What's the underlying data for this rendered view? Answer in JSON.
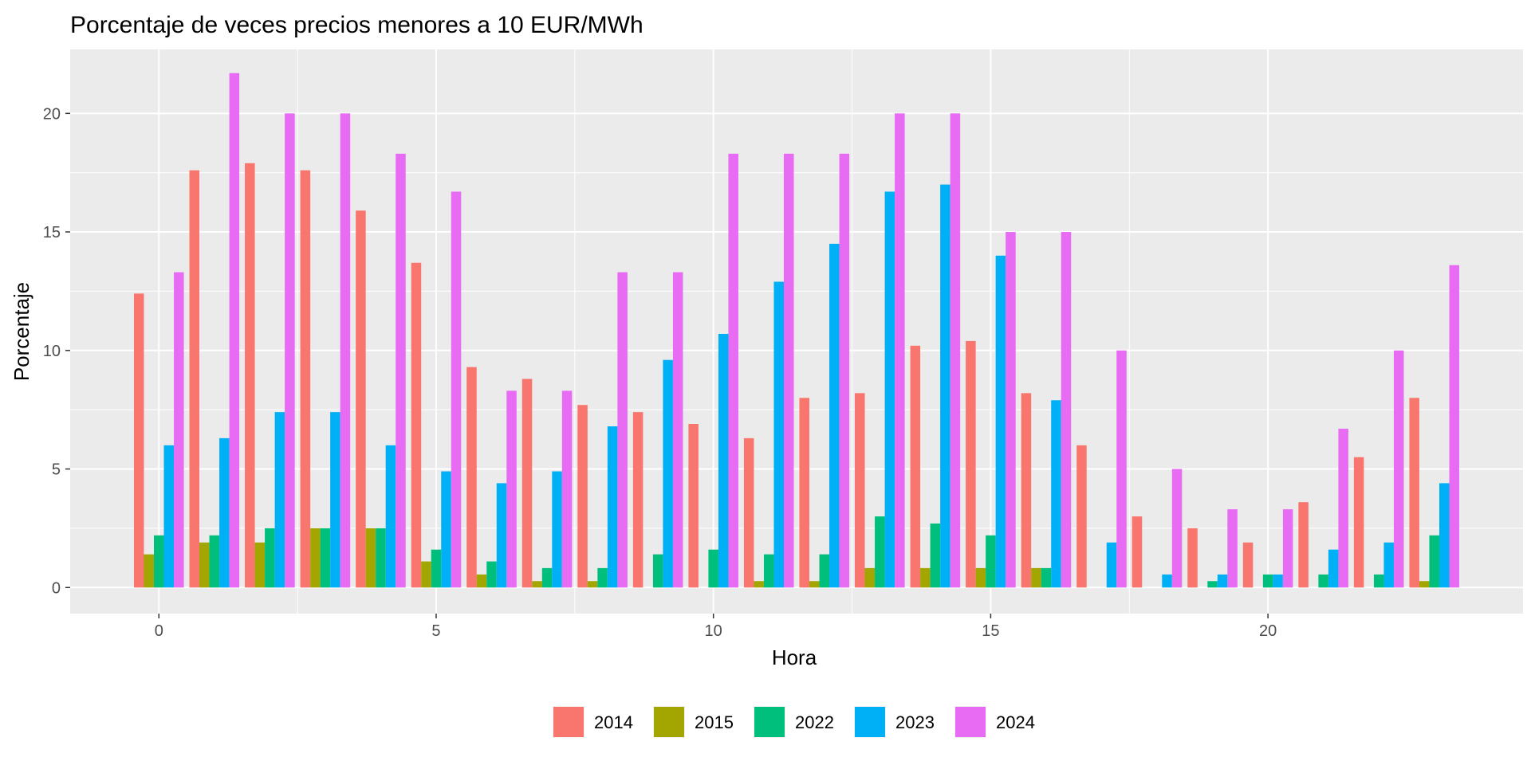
{
  "chart_data": {
    "type": "bar",
    "title": "Porcentaje de veces precios menores a 10 EUR/MWh",
    "xlabel": "Hora",
    "ylabel": "Porcentaje",
    "xlim": [
      -1.6,
      24.6
    ],
    "ylim": [
      -1.1,
      22.7
    ],
    "x_ticks": [
      0,
      5,
      10,
      15,
      20
    ],
    "y_ticks": [
      0,
      5,
      10,
      15,
      20
    ],
    "grid": true,
    "legend_position": "bottom",
    "x": [
      0,
      1,
      2,
      3,
      4,
      5,
      6,
      7,
      8,
      9,
      10,
      11,
      12,
      13,
      14,
      15,
      16,
      17,
      18,
      19,
      20,
      21,
      22,
      23
    ],
    "series": [
      {
        "name": "2014",
        "color": "#F8766D",
        "values": [
          12.4,
          17.6,
          17.9,
          17.6,
          15.9,
          13.7,
          9.3,
          8.8,
          7.7,
          7.4,
          6.9,
          6.3,
          8.0,
          8.2,
          10.2,
          10.4,
          8.2,
          6.0,
          3.0,
          2.5,
          1.9,
          3.6,
          5.5,
          8.0
        ]
      },
      {
        "name": "2015",
        "color": "#A3A500",
        "values": [
          1.4,
          1.9,
          1.9,
          2.5,
          2.5,
          1.1,
          0.55,
          0.27,
          0.27,
          0,
          0,
          0.27,
          0.27,
          0.82,
          0.82,
          0.82,
          0.82,
          0,
          0,
          0,
          0,
          0,
          0,
          0.27
        ]
      },
      {
        "name": "2022",
        "color": "#00BF7D",
        "values": [
          2.2,
          2.2,
          2.5,
          2.5,
          2.5,
          1.6,
          1.1,
          0.82,
          0.82,
          1.4,
          1.6,
          1.4,
          1.4,
          3.0,
          2.7,
          2.2,
          0.82,
          0,
          0,
          0.27,
          0.55,
          0.55,
          0.55,
          2.2
        ]
      },
      {
        "name": "2023",
        "color": "#00B0F6",
        "values": [
          6.0,
          6.3,
          7.4,
          7.4,
          6.0,
          4.9,
          4.4,
          4.9,
          6.8,
          9.6,
          10.7,
          12.9,
          14.5,
          16.7,
          17.0,
          14.0,
          7.9,
          1.9,
          0.55,
          0.55,
          0.55,
          1.6,
          1.9,
          4.4
        ]
      },
      {
        "name": "2024",
        "color": "#E76BF3",
        "values": [
          13.3,
          21.7,
          20.0,
          20.0,
          18.3,
          16.7,
          8.3,
          8.3,
          13.3,
          13.3,
          18.3,
          18.3,
          18.3,
          20.0,
          20.0,
          15.0,
          15.0,
          10.0,
          5.0,
          3.3,
          3.3,
          6.7,
          10.0,
          13.6
        ]
      }
    ]
  }
}
